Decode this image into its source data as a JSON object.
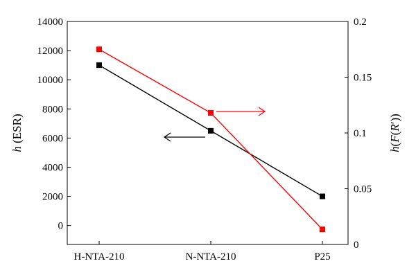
{
  "chart_data": {
    "type": "line",
    "categories": [
      "H-NTA-210",
      "N-NTA-210",
      "P25"
    ],
    "y_left": {
      "label_main": "h",
      "label_suffix": " (ESR)",
      "range": [
        -1300,
        14000
      ],
      "ticks": [
        "0",
        "2000",
        "4000",
        "6000",
        "8000",
        "10000",
        "12000",
        "14000"
      ],
      "tick_values": [
        0,
        2000,
        4000,
        6000,
        8000,
        10000,
        12000,
        14000
      ]
    },
    "y_right": {
      "label_h": "h",
      "label_f": "F",
      "label_r": "R",
      "label_open": "(",
      "label_open2": "(",
      "label_prime": "′",
      "label_close": "))",
      "range": [
        0,
        0.2
      ],
      "ticks": [
        "0",
        "0.05",
        "0.1",
        "0.15",
        "0.2"
      ],
      "tick_values": [
        0,
        0.05,
        0.1,
        0.15,
        0.2
      ]
    },
    "series": [
      {
        "axis": "left",
        "color": "#000000",
        "values": [
          11000,
          6500,
          2000
        ]
      },
      {
        "axis": "right",
        "color": "#ff0000",
        "values": [
          0.175,
          0.118,
          0.0135
        ]
      }
    ],
    "annotations": [
      {
        "type": "arrow",
        "direction": "left",
        "points_to": "left",
        "color": "#000000"
      },
      {
        "type": "arrow",
        "direction": "right",
        "points_to": "right",
        "color": "#ff0000"
      }
    ]
  }
}
